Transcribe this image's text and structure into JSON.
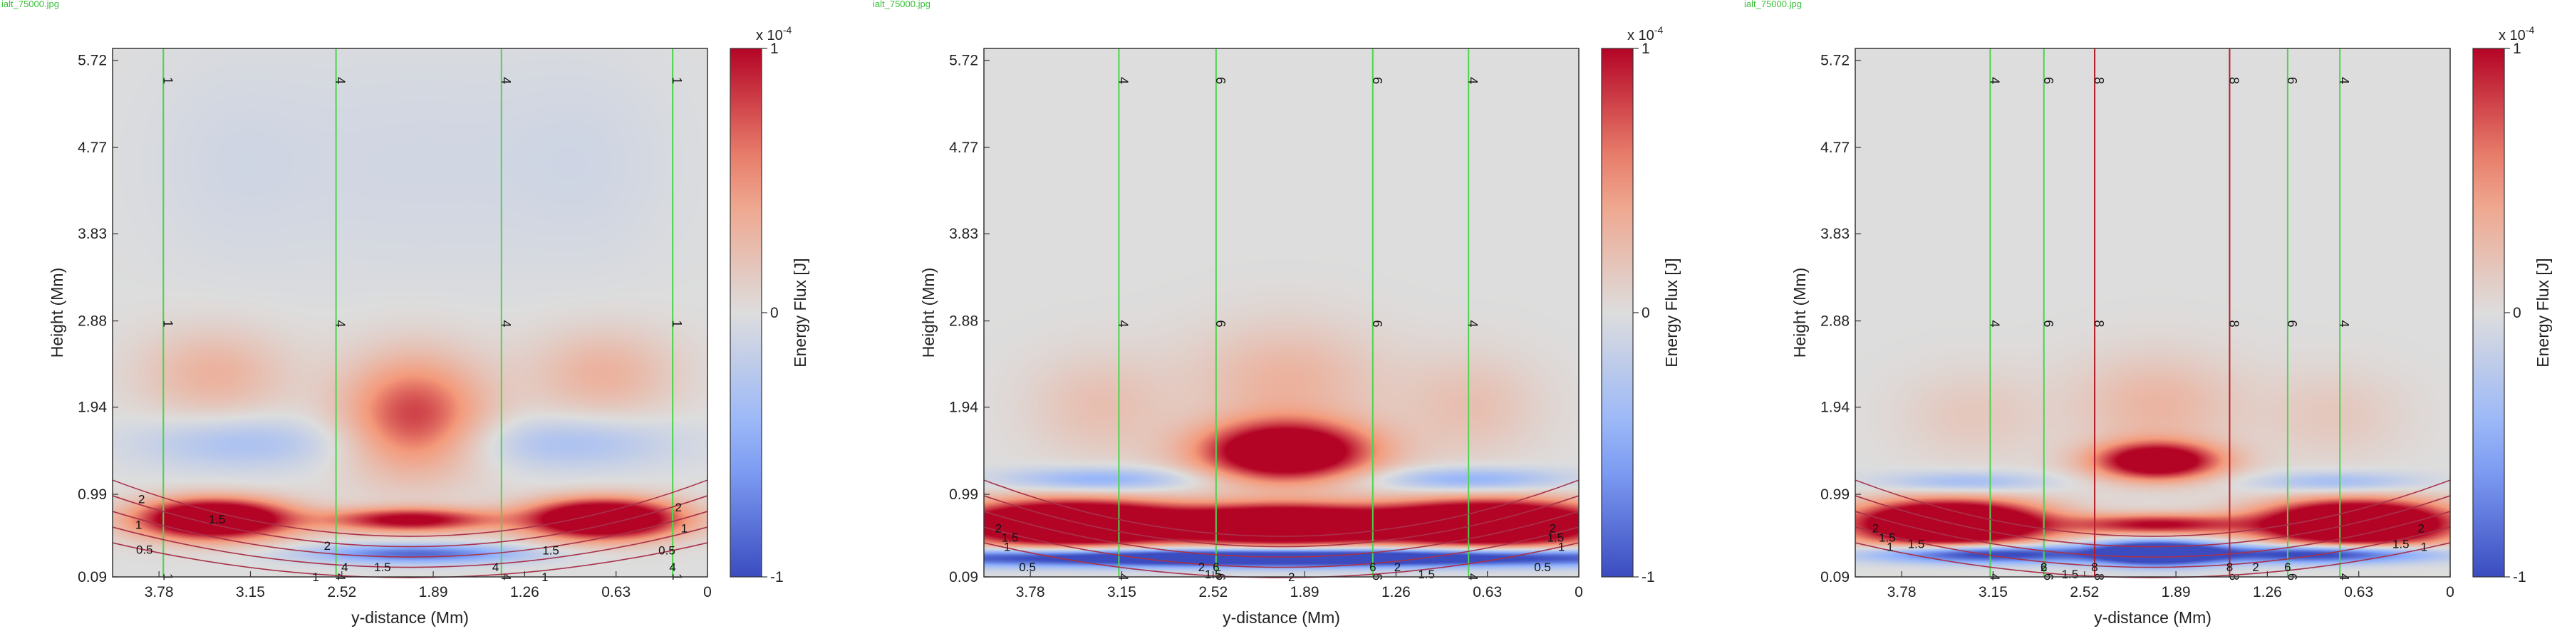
{
  "colorbar": {
    "max_label": "1",
    "mid_label": "0",
    "min_label": "-1",
    "exponent_prefix": "x 10",
    "exponent": "-4",
    "label": "Energy Flux [J]"
  },
  "colors": {
    "positive": "#b40426",
    "negative": "#3b4cc0",
    "neutral": "#dddddd",
    "field_green": "#4cd44c",
    "field_red": "#b21f2a",
    "filename_green": "#39c039"
  },
  "chart_data": [
    {
      "type": "heatmap",
      "filename": "ialt_75000.jpg",
      "xlabel": "y-distance (Mm)",
      "ylabel": "Height (Mm)",
      "x_ticks": [
        "3.78",
        "3.15",
        "2.52",
        "1.89",
        "1.26",
        "0.63",
        "0"
      ],
      "y_ticks": [
        "0.09",
        "0.99",
        "1.94",
        "2.88",
        "3.83",
        "4.77",
        "5.72"
      ],
      "xlim": [
        4.1,
        0
      ],
      "ylim": [
        0.09,
        5.85
      ],
      "clim": [
        -1,
        1
      ],
      "field_lines": [
        {
          "y": 3.75,
          "label": "1",
          "color": "green"
        },
        {
          "y": 2.56,
          "label": "4",
          "color": "green"
        },
        {
          "y": 1.42,
          "label": "4",
          "color": "green"
        },
        {
          "y": 0.24,
          "label": "1",
          "color": "green"
        }
      ],
      "contour_labels": [
        {
          "text": "2",
          "x": 3.9,
          "y": 0.94
        },
        {
          "text": "1.5",
          "x": 3.38,
          "y": 0.72
        },
        {
          "text": "1",
          "x": 3.92,
          "y": 0.66
        },
        {
          "text": "0.5",
          "x": 3.88,
          "y": 0.39
        },
        {
          "text": "2",
          "x": 2.62,
          "y": 0.43
        },
        {
          "text": "1.5",
          "x": 2.24,
          "y": 0.2
        },
        {
          "text": "1.5",
          "x": 1.08,
          "y": 0.38
        },
        {
          "text": "0.5",
          "x": 0.28,
          "y": 0.38
        },
        {
          "text": "2",
          "x": 0.2,
          "y": 0.85
        },
        {
          "text": "1",
          "x": 0.16,
          "y": 0.62
        },
        {
          "text": "1",
          "x": 2.7,
          "y": 0.09
        },
        {
          "text": "1",
          "x": 1.12,
          "y": 0.09
        },
        {
          "text": "4",
          "x": 2.5,
          "y": 0.2
        },
        {
          "text": "4",
          "x": 1.46,
          "y": 0.2
        },
        {
          "text": "4",
          "x": 0.24,
          "y": 0.2
        }
      ],
      "blobs": [
        {
          "x": 3.4,
          "y": 0.72,
          "amp": 1.8,
          "sx": 0.36,
          "sy": 0.15
        },
        {
          "x": 2.05,
          "y": 0.71,
          "amp": 1.1,
          "sx": 0.4,
          "sy": 0.09
        },
        {
          "x": 0.72,
          "y": 0.72,
          "amp": 1.8,
          "sx": 0.36,
          "sy": 0.15
        },
        {
          "x": 2.02,
          "y": 1.85,
          "amp": 0.8,
          "sx": 0.34,
          "sy": 0.45
        },
        {
          "x": 3.4,
          "y": 2.3,
          "amp": 0.32,
          "sx": 0.36,
          "sy": 0.35
        },
        {
          "x": 0.72,
          "y": 2.3,
          "amp": 0.32,
          "sx": 0.36,
          "sy": 0.35
        },
        {
          "x": 3.2,
          "y": 1.55,
          "amp": -0.32,
          "sx": 0.5,
          "sy": 0.2
        },
        {
          "x": 0.95,
          "y": 1.55,
          "amp": -0.32,
          "sx": 0.5,
          "sy": 0.2
        },
        {
          "x": 2.0,
          "y": 0.34,
          "amp": -0.85,
          "sx": 0.5,
          "sy": 0.07
        },
        {
          "x": 2.0,
          "y": 4.6,
          "amp": -0.08,
          "sx": 0.9,
          "sy": 0.9
        },
        {
          "x": 3.3,
          "y": 4.6,
          "amp": -0.06,
          "sx": 0.4,
          "sy": 0.8
        },
        {
          "x": 0.8,
          "y": 4.6,
          "amp": -0.06,
          "sx": 0.4,
          "sy": 0.8
        }
      ]
    },
    {
      "type": "heatmap",
      "filename": "ialt_75000.jpg",
      "xlabel": "y-distance (Mm)",
      "ylabel": "Height (Mm)",
      "x_ticks": [
        "3.78",
        "3.15",
        "2.52",
        "1.89",
        "1.26",
        "0.63",
        "0"
      ],
      "y_ticks": [
        "0.09",
        "0.99",
        "1.94",
        "2.88",
        "3.83",
        "4.77",
        "5.72"
      ],
      "xlim": [
        4.1,
        0
      ],
      "ylim": [
        0.09,
        5.85
      ],
      "clim": [
        -1,
        1
      ],
      "field_lines": [
        {
          "y": 3.17,
          "label": "4",
          "color": "green"
        },
        {
          "y": 2.5,
          "label": "6",
          "color": "green"
        },
        {
          "y": 1.42,
          "label": "6",
          "color": "green"
        },
        {
          "y": 0.76,
          "label": "4",
          "color": "green"
        }
      ],
      "contour_labels": [
        {
          "text": "2",
          "x": 4.0,
          "y": 0.62
        },
        {
          "text": "1.5",
          "x": 3.92,
          "y": 0.52
        },
        {
          "text": "1",
          "x": 3.94,
          "y": 0.42
        },
        {
          "text": "0.5",
          "x": 3.8,
          "y": 0.2
        },
        {
          "text": "2",
          "x": 2.6,
          "y": 0.2
        },
        {
          "text": "1.5",
          "x": 2.52,
          "y": 0.12
        },
        {
          "text": "2",
          "x": 1.98,
          "y": 0.09
        },
        {
          "text": "2",
          "x": 1.25,
          "y": 0.2
        },
        {
          "text": "1.5",
          "x": 1.05,
          "y": 0.12
        },
        {
          "text": "2",
          "x": 0.18,
          "y": 0.62
        },
        {
          "text": "1.5",
          "x": 0.16,
          "y": 0.52
        },
        {
          "text": "1",
          "x": 0.12,
          "y": 0.42
        },
        {
          "text": "0.5",
          "x": 0.25,
          "y": 0.2
        },
        {
          "text": "6",
          "x": 2.5,
          "y": 0.2
        },
        {
          "text": "6",
          "x": 1.42,
          "y": 0.2
        }
      ],
      "blobs": [
        {
          "x": 3.5,
          "y": 0.67,
          "amp": 2.2,
          "sx": 0.55,
          "sy": 0.17
        },
        {
          "x": 2.05,
          "y": 0.65,
          "amp": 2.0,
          "sx": 0.5,
          "sy": 0.15
        },
        {
          "x": 0.62,
          "y": 0.67,
          "amp": 2.2,
          "sx": 0.55,
          "sy": 0.17
        },
        {
          "x": 2.02,
          "y": 1.45,
          "amp": 1.6,
          "sx": 0.4,
          "sy": 0.22
        },
        {
          "x": 2.02,
          "y": 2.2,
          "amp": 0.32,
          "sx": 0.45,
          "sy": 0.45
        },
        {
          "x": 3.3,
          "y": 1.95,
          "amp": 0.22,
          "sx": 0.35,
          "sy": 0.4
        },
        {
          "x": 0.75,
          "y": 1.95,
          "amp": 0.22,
          "sx": 0.35,
          "sy": 0.4
        },
        {
          "x": 3.3,
          "y": 1.15,
          "amp": -0.5,
          "sx": 0.45,
          "sy": 0.09
        },
        {
          "x": 0.75,
          "y": 1.15,
          "amp": -0.5,
          "sx": 0.45,
          "sy": 0.09
        },
        {
          "x": 2.05,
          "y": 0.3,
          "amp": -1.7,
          "sx": 2.0,
          "sy": 0.07
        }
      ]
    },
    {
      "type": "heatmap",
      "filename": "ialt_75000.jpg",
      "xlabel": "y-distance (Mm)",
      "ylabel": "Height (Mm)",
      "x_ticks": [
        "3.78",
        "3.15",
        "2.52",
        "1.89",
        "1.26",
        "0.63",
        "0"
      ],
      "y_ticks": [
        "0.09",
        "0.99",
        "1.94",
        "2.88",
        "3.83",
        "4.77",
        "5.72"
      ],
      "xlim": [
        4.1,
        0
      ],
      "ylim": [
        0.09,
        5.85
      ],
      "clim": [
        -1,
        1
      ],
      "field_lines": [
        {
          "y": 3.17,
          "label": "4",
          "color": "green"
        },
        {
          "y": 2.8,
          "label": "6",
          "color": "green"
        },
        {
          "y": 2.45,
          "label": "8",
          "color": "red"
        },
        {
          "y": 1.52,
          "label": "8",
          "color": "red"
        },
        {
          "y": 1.12,
          "label": "6",
          "color": "green"
        },
        {
          "y": 0.76,
          "label": "4",
          "color": "green"
        }
      ],
      "contour_labels": [
        {
          "text": "2",
          "x": 3.96,
          "y": 0.62
        },
        {
          "text": "1.5",
          "x": 3.88,
          "y": 0.52
        },
        {
          "text": "1",
          "x": 3.86,
          "y": 0.42
        },
        {
          "text": "1.5",
          "x": 3.68,
          "y": 0.45
        },
        {
          "text": "2",
          "x": 2.8,
          "y": 0.2
        },
        {
          "text": "1.5",
          "x": 2.62,
          "y": 0.12
        },
        {
          "text": "2",
          "x": 1.34,
          "y": 0.2
        },
        {
          "text": "2",
          "x": 0.2,
          "y": 0.62
        },
        {
          "text": "1.5",
          "x": 0.34,
          "y": 0.45
        },
        {
          "text": "1",
          "x": 0.18,
          "y": 0.42
        },
        {
          "text": "6",
          "x": 2.8,
          "y": 0.2
        },
        {
          "text": "8",
          "x": 2.45,
          "y": 0.2
        },
        {
          "text": "8",
          "x": 1.52,
          "y": 0.2
        },
        {
          "text": "6",
          "x": 1.12,
          "y": 0.2
        }
      ],
      "blobs": [
        {
          "x": 3.45,
          "y": 0.67,
          "amp": 2.2,
          "sx": 0.45,
          "sy": 0.17
        },
        {
          "x": 2.02,
          "y": 0.66,
          "amp": 1.0,
          "sx": 0.42,
          "sy": 0.08
        },
        {
          "x": 0.65,
          "y": 0.67,
          "amp": 2.2,
          "sx": 0.45,
          "sy": 0.17
        },
        {
          "x": 2.02,
          "y": 1.35,
          "amp": 1.4,
          "sx": 0.3,
          "sy": 0.14
        },
        {
          "x": 2.02,
          "y": 1.95,
          "amp": 0.3,
          "sx": 0.4,
          "sy": 0.4
        },
        {
          "x": 3.3,
          "y": 1.85,
          "amp": 0.16,
          "sx": 0.35,
          "sy": 0.35
        },
        {
          "x": 0.8,
          "y": 1.85,
          "amp": 0.16,
          "sx": 0.35,
          "sy": 0.35
        },
        {
          "x": 3.35,
          "y": 1.12,
          "amp": -0.4,
          "sx": 0.4,
          "sy": 0.08
        },
        {
          "x": 0.78,
          "y": 1.12,
          "amp": -0.4,
          "sx": 0.4,
          "sy": 0.08
        },
        {
          "x": 2.02,
          "y": 0.35,
          "amp": -1.8,
          "sx": 0.3,
          "sy": 0.09
        },
        {
          "x": 3.2,
          "y": 0.34,
          "amp": -1.3,
          "sx": 0.55,
          "sy": 0.07
        },
        {
          "x": 0.9,
          "y": 0.34,
          "amp": -1.3,
          "sx": 0.55,
          "sy": 0.07
        }
      ]
    }
  ]
}
